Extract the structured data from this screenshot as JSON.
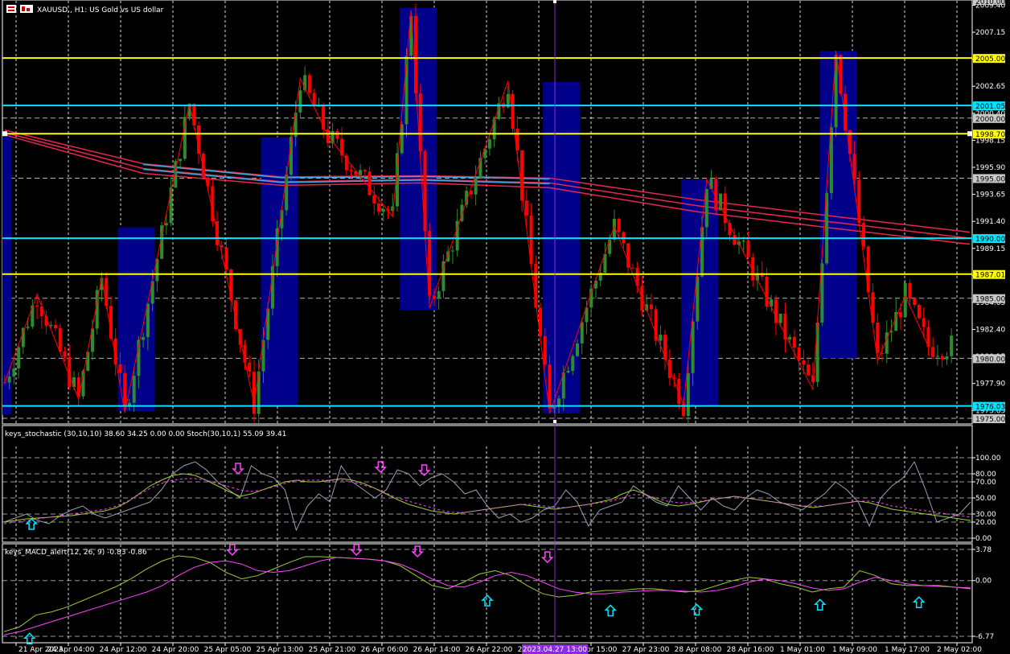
{
  "window": {
    "symbol_label": "XAUUSD., H1:  US Gold vs US dollar",
    "stoch_label": "keys_stochastic (30,10,10) 38.60 34.25 0.00 0.00 Stoch(30,10,1) 55.09 39.41",
    "macd_label": "keys_MACD_alert(12, 26, 9) -0.83 -0.86"
  },
  "colors": {
    "background": "#000000",
    "grid": "#ffffff",
    "bull": "#2e8b2e",
    "bear": "#ff0000",
    "ma": "#e8264f",
    "ma_cyan": "#39a7e6",
    "zigzag": "#ff0000",
    "zone": "#00008b",
    "yellow_level": "#ffff00",
    "cyan_level": "#00e5ff",
    "cursor": "#8a2be2",
    "stoch_main": "#9aa0b4",
    "stoch_signal": "#9acd32",
    "stoch_dash": "#ff44ff",
    "macd_line": "#9acd32",
    "macd_signal": "#ff44ff",
    "arrow_up": "#00e5ff",
    "arrow_down": "#ff44ff"
  },
  "chart_data": [
    {
      "type": "candlestick",
      "title": "XAUUSD., H1:  US Gold vs US dollar",
      "ylim": [
        1975.0,
        2009.4
      ],
      "y_ticks": [
        "2009.40",
        "2007.15",
        "2004.90",
        "2002.65",
        "2000.40",
        "1998.15",
        "1995.90",
        "1993.65",
        "1991.40",
        "1989.15",
        "1986.90",
        "1984.65",
        "1982.40",
        "1980.15",
        "1977.90",
        "1975.65"
      ],
      "x_ticks": [
        "21 Apr 2023",
        "24 Apr 04:00",
        "24 Apr 12:00",
        "24 Apr 20:00",
        "25 Apr 05:00",
        "25 Apr 13:00",
        "25 Apr 21:00",
        "26 Apr 06:00",
        "26 Apr 14:00",
        "26 Apr 22:00",
        "27 Apr 07:00",
        "27 Apr 15:00",
        "27 Apr 23:00",
        "28 Apr 08:00",
        "28 Apr 16:00",
        "1 May 01:00",
        "1 May 09:00",
        "1 May 17:00",
        "2 May 02:00"
      ],
      "cursor_time_label": "2023.04.27 13:00",
      "horizontal_levels": [
        {
          "price": 2005.0,
          "label": "2005.00",
          "color": "yellow"
        },
        {
          "price": 2001.05,
          "label": "2001.05",
          "color": "cyan"
        },
        {
          "price": 1998.7,
          "label": "1998.70",
          "color": "yellow"
        },
        {
          "price": 1990.0,
          "label": "1990.00",
          "color": "cyan"
        },
        {
          "price": 1987.01,
          "label": "1987.01",
          "color": "yellow"
        },
        {
          "price": 1976.03,
          "label": "1976.03",
          "color": "cyan"
        }
      ],
      "dashed_levels": [
        {
          "price": 2000.0,
          "label": "2000.00"
        },
        {
          "price": 1995.0,
          "label": "1995.00"
        },
        {
          "price": 1985.0,
          "label": "1985.00"
        },
        {
          "price": 1980.0,
          "label": "1980.00"
        },
        {
          "price": 1975.0,
          "label": "1975.00"
        }
      ],
      "top_label": "2010.00",
      "zones": [
        {
          "from_bar": 0,
          "to_bar": 1,
          "high": 1998.7,
          "low": 1975.3
        },
        {
          "from_bar": 25,
          "to_bar": 32,
          "high": 1990.9,
          "low": 1975.6
        },
        {
          "from_bar": 56,
          "to_bar": 63,
          "high": 1998.4,
          "low": 1976.0
        },
        {
          "from_bar": 86,
          "to_bar": 93,
          "high": 2009.2,
          "low": 1984.0
        },
        {
          "from_bar": 117,
          "to_bar": 124,
          "high": 2003.0,
          "low": 1975.4
        },
        {
          "from_bar": 147,
          "to_bar": 154,
          "high": 1994.9,
          "low": 1976.0
        },
        {
          "from_bar": 177,
          "to_bar": 184,
          "high": 2005.6,
          "low": 1980.0
        }
      ],
      "zigzag": [
        {
          "bar": 0,
          "price": 1978.0
        },
        {
          "bar": 7,
          "price": 1985.3
        },
        {
          "bar": 16,
          "price": 1976.6
        },
        {
          "bar": 21,
          "price": 1986.7
        },
        {
          "bar": 26,
          "price": 1975.5
        },
        {
          "bar": 40,
          "price": 2001.2
        },
        {
          "bar": 54,
          "price": 1976.2
        },
        {
          "bar": 64,
          "price": 2003.3
        },
        {
          "bar": 70,
          "price": 1998.5
        },
        {
          "bar": 84,
          "price": 1991.8
        },
        {
          "bar": 88,
          "price": 2009.0
        },
        {
          "bar": 92,
          "price": 1984.2
        },
        {
          "bar": 109,
          "price": 2003.1
        },
        {
          "bar": 118,
          "price": 1975.4
        },
        {
          "bar": 132,
          "price": 1991.0
        },
        {
          "bar": 147,
          "price": 1976.1
        },
        {
          "bar": 152,
          "price": 1994.9
        },
        {
          "bar": 175,
          "price": 1977.4
        },
        {
          "bar": 180,
          "price": 2005.6
        },
        {
          "bar": 189,
          "price": 1979.8
        },
        {
          "bar": 195,
          "price": 1985.2
        },
        {
          "bar": 200,
          "price": 1981.0
        }
      ],
      "moving_averages": [
        {
          "name": "ma1",
          "points": [
            [
              0,
              1999.0
            ],
            [
              30,
              1996.2
            ],
            [
              60,
              1995.1
            ],
            [
              90,
              1995.2
            ],
            [
              118,
              1995.0
            ],
            [
              150,
              1993.2
            ],
            [
              180,
              1991.8
            ],
            [
              209,
              1990.5
            ]
          ]
        },
        {
          "name": "ma2",
          "points": [
            [
              0,
              1998.8
            ],
            [
              30,
              1995.8
            ],
            [
              60,
              1994.7
            ],
            [
              90,
              1994.9
            ],
            [
              118,
              1994.6
            ],
            [
              150,
              1992.7
            ],
            [
              180,
              1991.3
            ],
            [
              209,
              1990.0
            ]
          ]
        },
        {
          "name": "ma3",
          "points": [
            [
              0,
              1998.6
            ],
            [
              30,
              1995.4
            ],
            [
              60,
              1994.4
            ],
            [
              90,
              1994.6
            ],
            [
              118,
              1994.2
            ],
            [
              150,
              1992.2
            ],
            [
              180,
              1990.8
            ],
            [
              209,
              1989.5
            ]
          ]
        }
      ]
    },
    {
      "type": "line",
      "title": "keys_stochastic (30,10,10) 38.60 34.25 0.00 0.00 Stoch(30,10,1) 55.09 39.41",
      "ylim": [
        0,
        108
      ],
      "y_ticks": [
        "100.00",
        "80.00",
        "70.00",
        "50.00",
        "30.00",
        "20.00",
        "0.00"
      ],
      "series": [
        {
          "key": "main",
          "values": [
            20,
            25,
            30,
            22,
            18,
            28,
            35,
            40,
            30,
            25,
            30,
            35,
            40,
            45,
            60,
            80,
            90,
            95,
            85,
            70,
            60,
            50,
            90,
            80,
            75,
            60,
            10,
            40,
            55,
            45,
            90,
            70,
            60,
            50,
            60,
            85,
            80,
            65,
            75,
            80,
            70,
            55,
            60,
            40,
            25,
            30,
            20,
            25,
            35,
            40,
            60,
            45,
            15,
            35,
            40,
            45,
            65,
            55,
            45,
            40,
            65,
            50,
            35,
            50,
            40,
            35,
            50,
            60,
            55,
            45,
            40,
            35,
            45,
            55,
            70,
            60,
            45,
            15,
            50,
            65,
            75,
            95,
            60,
            20,
            25,
            30,
            45
          ]
        },
        {
          "key": "signal",
          "values": [
            20,
            22,
            24,
            25,
            26,
            27,
            28,
            30,
            32,
            34,
            38,
            45,
            55,
            65,
            72,
            78,
            80,
            78,
            72,
            65,
            58,
            52,
            55,
            60,
            65,
            70,
            72,
            70,
            70,
            72,
            74,
            72,
            68,
            62,
            55,
            48,
            42,
            38,
            34,
            32,
            30,
            32,
            34,
            36,
            38,
            40,
            42,
            40,
            38,
            36,
            38,
            40,
            42,
            45,
            48,
            55,
            60,
            55,
            48,
            42,
            40,
            42,
            45,
            48,
            50,
            52,
            50,
            48,
            46,
            44,
            42,
            40,
            38,
            40,
            42,
            44,
            46,
            44,
            40,
            36,
            34,
            32,
            30,
            28,
            26,
            24,
            22
          ]
        },
        {
          "key": "dash",
          "values": [
            18,
            20,
            22,
            24,
            26,
            28,
            30,
            32,
            34,
            36,
            40,
            46,
            54,
            62,
            68,
            72,
            74,
            74,
            72,
            68,
            64,
            60,
            58,
            60,
            64,
            68,
            72,
            72,
            72,
            72,
            72,
            70,
            66,
            62,
            56,
            50,
            46,
            42,
            38,
            34,
            32,
            32,
            34,
            36,
            38,
            40,
            42,
            42,
            40,
            38,
            38,
            40,
            42,
            44,
            46,
            50,
            54,
            54,
            50,
            46,
            44,
            44,
            46,
            48,
            50,
            52,
            50,
            48,
            46,
            44,
            42,
            40,
            40,
            40,
            42,
            44,
            46,
            46,
            44,
            40,
            38,
            36,
            34,
            32,
            30,
            28,
            26
          ]
        }
      ],
      "arrows": [
        {
          "x_frac": 0.03,
          "value": 22,
          "dir": "up"
        },
        {
          "x_frac": 0.243,
          "value": 82,
          "dir": "down"
        },
        {
          "x_frac": 0.39,
          "value": 84,
          "dir": "down"
        },
        {
          "x_frac": 0.435,
          "value": 80,
          "dir": "down"
        }
      ]
    },
    {
      "type": "line",
      "title": "keys_MACD_alert(12, 26, 9) -0.83 -0.86",
      "ylim": [
        -6.77,
        3.78
      ],
      "y_ticks": [
        "3.78",
        "0.00",
        "-6.77"
      ],
      "series": [
        {
          "key": "macd",
          "values": [
            -6.2,
            -5.6,
            -4.2,
            -3.8,
            -3.2,
            -2.4,
            -1.6,
            -0.8,
            0.2,
            1.4,
            2.4,
            3.0,
            2.8,
            2.2,
            1.0,
            0.2,
            0.6,
            1.4,
            2.2,
            2.9,
            2.9,
            2.8,
            2.7,
            2.6,
            2.4,
            1.8,
            0.6,
            -0.6,
            -1.0,
            -0.2,
            0.8,
            1.2,
            0.6,
            -0.6,
            -1.6,
            -2.0,
            -1.8,
            -1.4,
            -1.2,
            -1.2,
            -1.0,
            -1.0,
            -1.2,
            -1.4,
            -1.2,
            -0.6,
            0.0,
            0.4,
            0.2,
            -0.4,
            -0.8,
            -1.4,
            -1.0,
            -0.8,
            1.2,
            0.6,
            -0.4,
            -0.6,
            -0.6,
            -0.6,
            -0.8,
            -1.0
          ]
        },
        {
          "key": "signal",
          "values": [
            -6.6,
            -6.2,
            -5.6,
            -5.0,
            -4.4,
            -3.8,
            -3.2,
            -2.6,
            -2.0,
            -1.4,
            -0.6,
            0.6,
            1.6,
            2.2,
            2.4,
            2.0,
            1.2,
            1.0,
            1.2,
            1.8,
            2.4,
            2.8,
            2.7,
            2.6,
            2.4,
            2.0,
            1.2,
            0.2,
            -0.6,
            -0.8,
            -0.2,
            0.6,
            1.0,
            0.6,
            -0.2,
            -1.0,
            -1.4,
            -1.6,
            -1.6,
            -1.4,
            -1.3,
            -1.2,
            -1.2,
            -1.3,
            -1.4,
            -1.2,
            -0.8,
            -0.2,
            0.2,
            0.0,
            -0.4,
            -0.9,
            -1.2,
            -1.0,
            -0.2,
            0.4,
            0.0,
            -0.4,
            -0.6,
            -0.7,
            -0.8,
            -0.9
          ]
        }
      ],
      "arrows": [
        {
          "x_frac": 0.028,
          "value": -6.6,
          "dir": "up"
        },
        {
          "x_frac": 0.237,
          "value": 3.3,
          "dir": "down"
        },
        {
          "x_frac": 0.365,
          "value": 3.3,
          "dir": "down"
        },
        {
          "x_frac": 0.428,
          "value": 3.1,
          "dir": "down"
        },
        {
          "x_frac": 0.5,
          "value": -2.0,
          "dir": "up"
        },
        {
          "x_frac": 0.562,
          "value": 2.4,
          "dir": "down"
        },
        {
          "x_frac": 0.627,
          "value": -3.2,
          "dir": "up"
        },
        {
          "x_frac": 0.716,
          "value": -3.1,
          "dir": "up"
        },
        {
          "x_frac": 0.843,
          "value": -2.5,
          "dir": "up"
        },
        {
          "x_frac": 0.945,
          "value": -2.2,
          "dir": "up"
        }
      ]
    }
  ]
}
